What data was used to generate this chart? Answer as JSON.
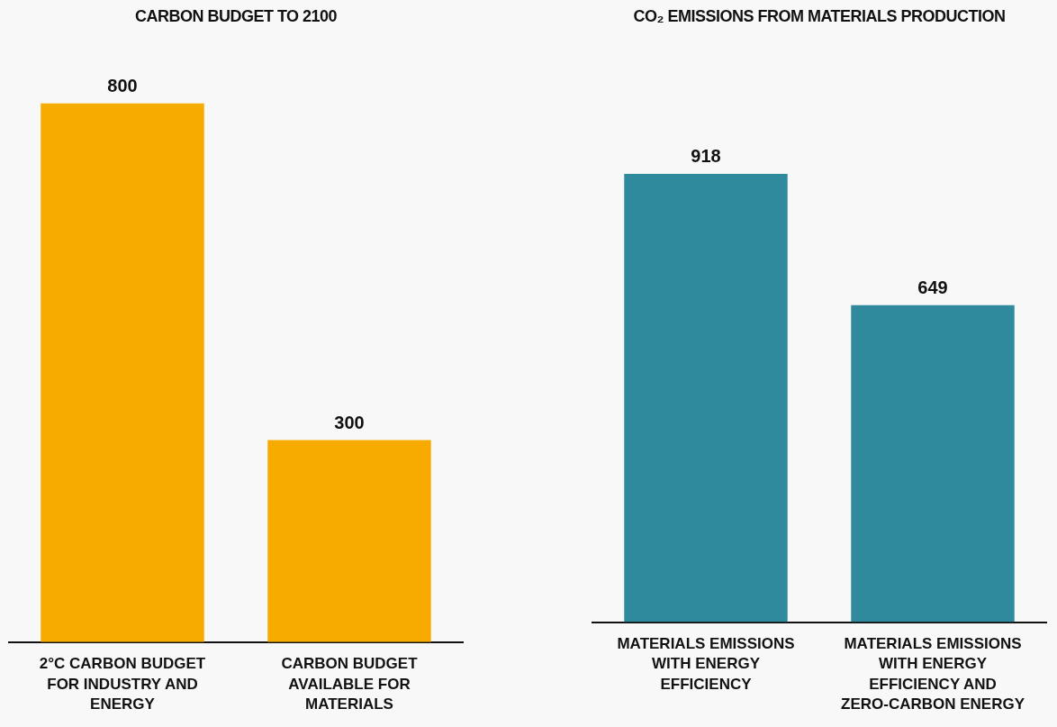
{
  "chart_data": [
    {
      "type": "bar",
      "title": "CARBON BUDGET TO 2100",
      "categories": [
        "2°C CARBON BUDGET FOR INDUSTRY AND ENERGY",
        "CARBON BUDGET AVAILABLE FOR MATERIALS"
      ],
      "values": [
        800,
        300
      ],
      "color": "#f7ab00",
      "data_labels": true,
      "grid": false,
      "legend": false
    },
    {
      "type": "bar",
      "title": "CO₂ EMISSIONS FROM MATERIALS PRODUCTION",
      "categories": [
        "MATERIALS EMISSIONS WITH ENERGY EFFICIENCY",
        "MATERIALS EMISSIONS WITH ENERGY EFFICIENCY AND ZERO-CARBON ENERGY"
      ],
      "values": [
        918,
        649
      ],
      "color": "#2e8a9c",
      "data_labels": true,
      "grid": false,
      "legend": false
    }
  ]
}
